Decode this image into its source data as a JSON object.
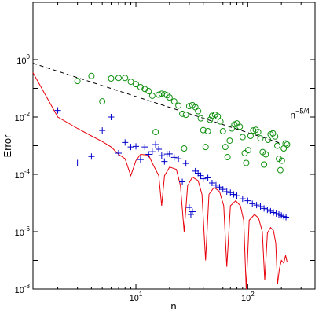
{
  "chart_data": {
    "type": "line",
    "xscale": "log",
    "yscale": "log",
    "xlim": [
      1.2,
      400
    ],
    "ylim": [
      1e-08,
      100
    ],
    "xlabel": "n",
    "ylabel": "Error",
    "grid": false,
    "legend": "none",
    "x_ticks": [
      {
        "value": 10,
        "base": "10",
        "exp": "1"
      },
      {
        "value": 100,
        "base": "10",
        "exp": "2"
      }
    ],
    "y_ticks": [
      {
        "value": 1e-08,
        "base": "10",
        "exp": "-8"
      },
      {
        "value": 1e-06,
        "base": "10",
        "exp": "-6"
      },
      {
        "value": 0.0001,
        "base": "10",
        "exp": "-4"
      },
      {
        "value": 0.01,
        "base": "10",
        "exp": "-2"
      },
      {
        "value": 1,
        "base": "10",
        "exp": "0"
      }
    ],
    "annotation": {
      "base": "n",
      "exp": "−5/4",
      "x": 240,
      "y": 0.009
    },
    "series": [
      {
        "style": "dashed-line",
        "color": "#000000",
        "points": [
          [
            1.2,
            0.75
          ],
          [
            200,
            0.0012
          ]
        ]
      },
      {
        "style": "line",
        "color": "#e8000b",
        "points": [
          [
            1.2,
            0.35
          ],
          [
            2,
            0.01
          ],
          [
            3,
            0.004
          ],
          [
            4,
            0.0022
          ],
          [
            5,
            0.0014
          ],
          [
            6,
            0.0009
          ],
          [
            7,
            0.0005
          ],
          [
            8,
            0.00035
          ],
          [
            9,
            9e-05
          ],
          [
            10,
            0.0003
          ],
          [
            11,
            0.0005
          ],
          [
            13,
            0.00047
          ],
          [
            14,
            0.00025
          ],
          [
            16,
            9e-05
          ],
          [
            17,
            8e-06
          ],
          [
            18,
            9e-05
          ],
          [
            20,
            0.00018
          ],
          [
            23,
            0.00015
          ],
          [
            25,
            4e-05
          ],
          [
            27,
            1e-06
          ],
          [
            29,
            4e-05
          ],
          [
            32,
            8e-05
          ],
          [
            36,
            6e-05
          ],
          [
            39,
            2e-05
          ],
          [
            42,
            1e-07
          ],
          [
            45,
            2e-05
          ],
          [
            50,
            3.5e-05
          ],
          [
            56,
            2.5e-05
          ],
          [
            61,
            8e-06
          ],
          [
            65,
            6e-08
          ],
          [
            70,
            8e-06
          ],
          [
            78,
            1.2e-05
          ],
          [
            86,
            8e-06
          ],
          [
            92,
            2.5e-06
          ],
          [
            97,
            1e-08
          ],
          [
            103,
            2.5e-06
          ],
          [
            115,
            4e-06
          ],
          [
            125,
            3e-06
          ],
          [
            135,
            1e-06
          ],
          [
            142,
            2e-08
          ],
          [
            150,
            9e-07
          ],
          [
            160,
            1.4e-06
          ],
          [
            170,
            1.1e-06
          ],
          [
            178,
            4e-07
          ],
          [
            185,
            1.5e-08
          ],
          [
            192,
            5e-08
          ],
          [
            200,
            1e-07
          ],
          [
            210,
            8e-08
          ],
          [
            218,
            1.5e-07
          ],
          [
            225,
            9e-08
          ]
        ]
      }
    ],
    "scatter_series": [
      {
        "marker": "plus",
        "color": "#0000cc",
        "points": [
          [
            2,
            0.017
          ],
          [
            3,
            0.00025
          ],
          [
            4,
            0.00042
          ],
          [
            5,
            0.0034
          ],
          [
            6,
            0.01
          ],
          [
            7,
            0.00055
          ],
          [
            8,
            0.0013
          ],
          [
            9,
            0.0009
          ],
          [
            10,
            0.00095
          ],
          [
            11,
            0.00033
          ],
          [
            12,
            0.0009
          ],
          [
            13,
            0.0005
          ],
          [
            14,
            0.00062
          ],
          [
            15,
            0.0011
          ],
          [
            16,
            0.00075
          ],
          [
            17,
            0.00045
          ],
          [
            18,
            0.00028
          ],
          [
            19,
            0.00051
          ],
          [
            20,
            0.00052
          ],
          [
            22,
            0.00039
          ],
          [
            24,
            0.00035
          ],
          [
            26,
            5.5e-05
          ],
          [
            28,
            0.00024
          ],
          [
            30,
            7e-06
          ],
          [
            31,
            4e-06
          ],
          [
            32,
            5e-06
          ],
          [
            34,
            0.00013
          ],
          [
            36,
            0.00011
          ],
          [
            38,
            9e-05
          ],
          [
            40,
            7e-05
          ],
          [
            44,
            7.5e-05
          ],
          [
            48,
            5e-05
          ],
          [
            52,
            4.2e-05
          ],
          [
            56,
            3.6e-05
          ],
          [
            60,
            3e-05
          ],
          [
            65,
            2.5e-05
          ],
          [
            70,
            2.3e-05
          ],
          [
            75,
            2e-05
          ],
          [
            80,
            1.8e-05
          ],
          [
            90,
            1.4e-05
          ],
          [
            100,
            1.2e-05
          ],
          [
            110,
            9.5e-06
          ],
          [
            120,
            8.5e-06
          ],
          [
            130,
            7.5e-06
          ],
          [
            140,
            6.5e-06
          ],
          [
            150,
            5.8e-06
          ],
          [
            160,
            5.2e-06
          ],
          [
            170,
            4.7e-06
          ],
          [
            180,
            4.3e-06
          ],
          [
            190,
            4e-06
          ],
          [
            200,
            3.7e-06
          ],
          [
            210,
            3.4e-06
          ],
          [
            220,
            3.2e-06
          ]
        ]
      },
      {
        "marker": "circle",
        "color": "#119111",
        "points": [
          [
            3,
            0.18
          ],
          [
            4,
            0.27
          ],
          [
            5,
            0.035
          ],
          [
            6,
            0.22
          ],
          [
            7,
            0.23
          ],
          [
            8,
            0.23
          ],
          [
            9,
            0.17
          ],
          [
            10,
            0.14
          ],
          [
            11,
            0.11
          ],
          [
            12,
            0.095
          ],
          [
            13,
            0.08
          ],
          [
            14,
            0.055
          ],
          [
            15,
            0.003
          ],
          [
            16,
            0.06
          ],
          [
            17,
            0.065
          ],
          [
            18,
            0.062
          ],
          [
            19,
            0.057
          ],
          [
            20,
            0.048
          ],
          [
            22,
            0.035
          ],
          [
            24,
            0.025
          ],
          [
            26,
            0.013
          ],
          [
            27,
            0.0008
          ],
          [
            28,
            0.012
          ],
          [
            30,
            0.024
          ],
          [
            32,
            0.026
          ],
          [
            34,
            0.022
          ],
          [
            36,
            0.016
          ],
          [
            38,
            0.009
          ],
          [
            40,
            0.0035
          ],
          [
            42,
            0.0009
          ],
          [
            44,
            0.0032
          ],
          [
            46,
            0.008
          ],
          [
            48,
            0.011
          ],
          [
            51,
            0.012
          ],
          [
            54,
            0.0105
          ],
          [
            57,
            0.007
          ],
          [
            60,
            0.0032
          ],
          [
            63,
            0.0009
          ],
          [
            66,
            0.0004
          ],
          [
            69,
            0.0015
          ],
          [
            72,
            0.004
          ],
          [
            76,
            0.0055
          ],
          [
            80,
            0.006
          ],
          [
            85,
            0.0046
          ],
          [
            90,
            0.002
          ],
          [
            94,
            0.00055
          ],
          [
            97,
            0.00025
          ],
          [
            101,
            0.0007
          ],
          [
            106,
            0.0022
          ],
          [
            112,
            0.0034
          ],
          [
            118,
            0.0036
          ],
          [
            124,
            0.003
          ],
          [
            130,
            0.0018
          ],
          [
            136,
            0.0006
          ],
          [
            140,
            0.00022
          ],
          [
            145,
            0.0005
          ],
          [
            152,
            0.0016
          ],
          [
            160,
            0.0025
          ],
          [
            168,
            0.0027
          ],
          [
            176,
            0.0021
          ],
          [
            184,
            0.001
          ],
          [
            190,
            0.00035
          ],
          [
            196,
            0.00014
          ],
          [
            202,
            0.0003
          ],
          [
            210,
            0.0008
          ],
          [
            218,
            0.0012
          ],
          [
            225,
            0.0011
          ]
        ]
      }
    ]
  }
}
